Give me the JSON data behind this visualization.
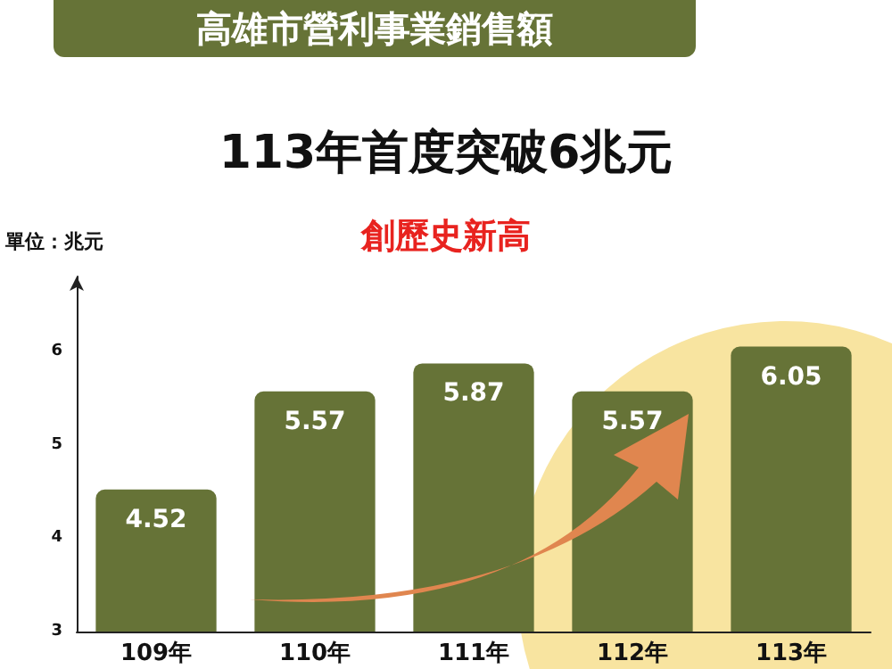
{
  "chart_data": {
    "type": "bar",
    "title": "高雄市營利事業銷售額",
    "subtitle": "113年首度突破6兆元",
    "ylabel": "單位：兆元",
    "annotations": [
      "創歷史新高"
    ],
    "categories": [
      "109年",
      "110年",
      "111年",
      "112年",
      "113年"
    ],
    "values": [
      4.52,
      5.57,
      5.87,
      5.57,
      6.05
    ],
    "color": "#667337",
    "ylim": [
      3,
      6.8
    ],
    "yticks": [
      3,
      4,
      5,
      6
    ],
    "data_labels": true,
    "grid": false
  }
}
